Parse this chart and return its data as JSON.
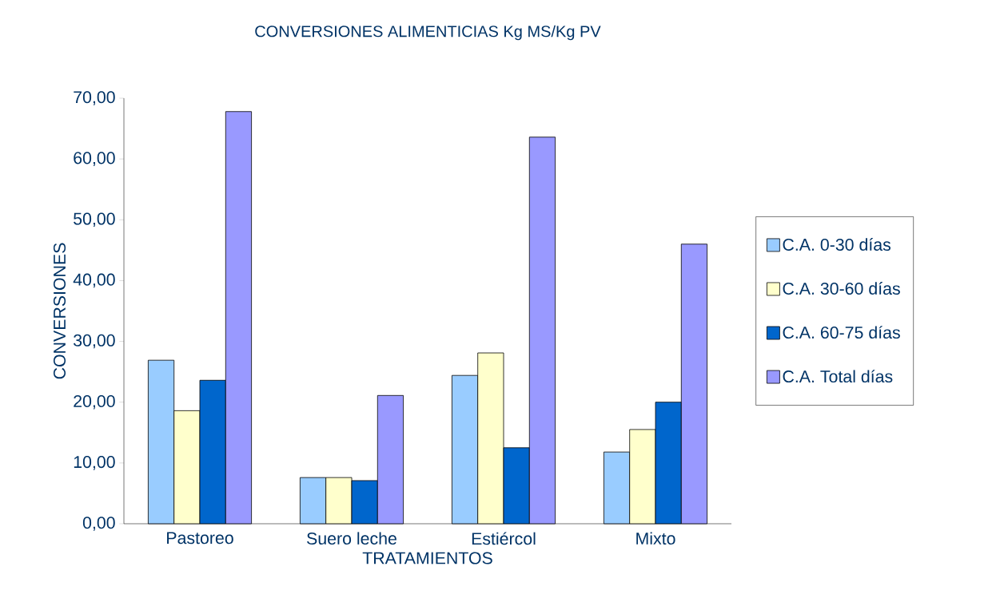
{
  "chart_data": {
    "type": "bar",
    "title": "CONVERSIONES ALIMENTICIAS Kg MS/Kg PV",
    "xlabel": "TRATAMIENTOS",
    "ylabel": "CONVERSIONES",
    "categories": [
      "Pastoreo",
      "Suero leche",
      "Estiércol",
      "Mixto"
    ],
    "series": [
      {
        "name": "C.A. 0-30 días",
        "color": "#99ccff",
        "values": [
          26.9,
          7.6,
          24.4,
          11.8
        ]
      },
      {
        "name": "C.A. 30-60 días",
        "color": "#ffffcc",
        "values": [
          18.6,
          7.6,
          28.1,
          15.5
        ]
      },
      {
        "name": "C.A. 60-75 días",
        "color": "#0066cc",
        "values": [
          23.6,
          7.1,
          12.5,
          20.0
        ]
      },
      {
        "name": "C.A. Total días",
        "color": "#9999ff",
        "values": [
          67.8,
          21.1,
          63.6,
          46.0
        ]
      }
    ],
    "ylim": [
      0,
      70
    ],
    "yticks": [
      {
        "value": 0,
        "label": "0,00"
      },
      {
        "value": 10,
        "label": "10,00"
      },
      {
        "value": 20,
        "label": "20,00"
      },
      {
        "value": 30,
        "label": "30,00"
      },
      {
        "value": 40,
        "label": "40,00"
      },
      {
        "value": 50,
        "label": "50,00"
      },
      {
        "value": 60,
        "label": "60,00"
      },
      {
        "value": 70,
        "label": "70,00"
      }
    ],
    "legend": "right"
  }
}
